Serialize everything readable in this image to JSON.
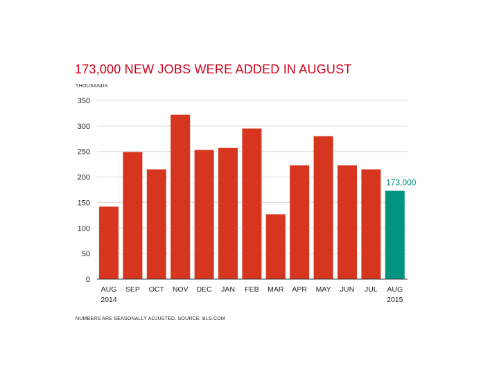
{
  "chart_data": {
    "type": "bar",
    "title": "173,000 NEW JOBS WERE ADDED IN AUGUST",
    "units_label": "THOUSANDS",
    "ylim": [
      0,
      350
    ],
    "yticks": [
      0,
      50,
      100,
      150,
      200,
      250,
      300,
      350
    ],
    "grid": true,
    "categories": [
      {
        "month": "AUG",
        "year": "2014"
      },
      {
        "month": "SEP",
        "year": ""
      },
      {
        "month": "OCT",
        "year": ""
      },
      {
        "month": "NOV",
        "year": ""
      },
      {
        "month": "DEC",
        "year": ""
      },
      {
        "month": "JAN",
        "year": ""
      },
      {
        "month": "FEB",
        "year": ""
      },
      {
        "month": "MAR",
        "year": ""
      },
      {
        "month": "APR",
        "year": ""
      },
      {
        "month": "MAY",
        "year": ""
      },
      {
        "month": "JUN",
        "year": ""
      },
      {
        "month": "JUL",
        "year": ""
      },
      {
        "month": "AUG",
        "year": "2015"
      }
    ],
    "values": [
      142,
      249,
      215,
      322,
      253,
      257,
      295,
      127,
      223,
      280,
      223,
      215,
      173
    ],
    "highlight_index": 12,
    "annotation": "173,000",
    "colors": {
      "bar": "#d6361f",
      "highlight": "#009380",
      "title": "#d0021b",
      "grid": "#d9d9d9"
    },
    "footnote": "NUMBERS ARE SEASONALLY ADJUSTED. SOURCE: BLS.COM"
  }
}
